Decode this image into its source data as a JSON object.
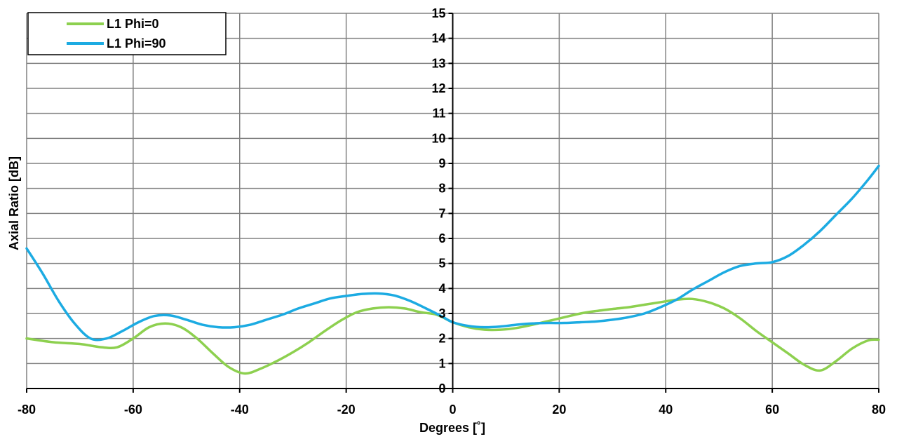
{
  "chart_data": {
    "type": "line",
    "title": "",
    "xlabel": "Degrees [˚]",
    "ylabel": "Axial Ratio [dB]",
    "xlim": [
      -80,
      80
    ],
    "ylim": [
      0,
      15
    ],
    "x_ticks": [
      -80,
      -60,
      -40,
      -20,
      0,
      20,
      40,
      60,
      80
    ],
    "y_ticks": [
      0,
      1,
      2,
      3,
      4,
      5,
      6,
      7,
      8,
      9,
      10,
      11,
      12,
      13,
      14,
      15
    ],
    "grid": true,
    "legend_position": "top-left",
    "series": [
      {
        "name": "L1 Phi=0",
        "color": "#8dd04f",
        "x": [
          -80,
          -75,
          -70,
          -66,
          -63,
          -60,
          -57,
          -54,
          -51,
          -48,
          -45,
          -42,
          -39,
          -36,
          -33,
          -30,
          -27,
          -24,
          -21,
          -18,
          -15,
          -12,
          -9,
          -6,
          -3,
          0,
          3,
          6,
          9,
          12,
          15,
          18,
          21,
          24,
          27,
          30,
          33,
          36,
          39,
          42,
          45,
          48,
          51,
          54,
          57,
          60,
          63,
          66,
          69,
          72,
          75,
          78,
          80
        ],
        "y": [
          2.0,
          1.85,
          1.78,
          1.65,
          1.65,
          2.0,
          2.45,
          2.6,
          2.45,
          2.0,
          1.4,
          0.85,
          0.6,
          0.8,
          1.1,
          1.45,
          1.85,
          2.3,
          2.72,
          3.05,
          3.2,
          3.25,
          3.2,
          3.05,
          2.95,
          2.65,
          2.45,
          2.35,
          2.35,
          2.42,
          2.55,
          2.7,
          2.85,
          3.0,
          3.1,
          3.18,
          3.25,
          3.35,
          3.45,
          3.55,
          3.58,
          3.45,
          3.2,
          2.8,
          2.3,
          1.85,
          1.4,
          0.95,
          0.72,
          1.1,
          1.6,
          1.92,
          1.95
        ]
      },
      {
        "name": "L1 Phi=90",
        "color": "#1cabe2",
        "x": [
          -80,
          -77,
          -74,
          -71,
          -68,
          -65,
          -62,
          -59,
          -56,
          -53,
          -50,
          -47,
          -44,
          -41,
          -38,
          -35,
          -32,
          -29,
          -26,
          -23,
          -20,
          -17,
          -14,
          -11,
          -8,
          -5,
          -2,
          0,
          3,
          6,
          9,
          12,
          15,
          18,
          21,
          24,
          27,
          30,
          33,
          36,
          39,
          42,
          45,
          48,
          51,
          54,
          57,
          60,
          63,
          66,
          69,
          72,
          75,
          78,
          80
        ],
        "y": [
          5.6,
          4.6,
          3.5,
          2.6,
          2.0,
          2.0,
          2.3,
          2.65,
          2.9,
          2.92,
          2.75,
          2.55,
          2.45,
          2.45,
          2.55,
          2.75,
          2.95,
          3.2,
          3.4,
          3.6,
          3.7,
          3.78,
          3.8,
          3.72,
          3.5,
          3.2,
          2.88,
          2.65,
          2.5,
          2.45,
          2.48,
          2.55,
          2.6,
          2.62,
          2.62,
          2.65,
          2.68,
          2.75,
          2.85,
          3.0,
          3.25,
          3.55,
          3.95,
          4.3,
          4.65,
          4.9,
          5.0,
          5.05,
          5.3,
          5.75,
          6.3,
          6.95,
          7.6,
          8.35,
          8.9
        ]
      }
    ]
  }
}
